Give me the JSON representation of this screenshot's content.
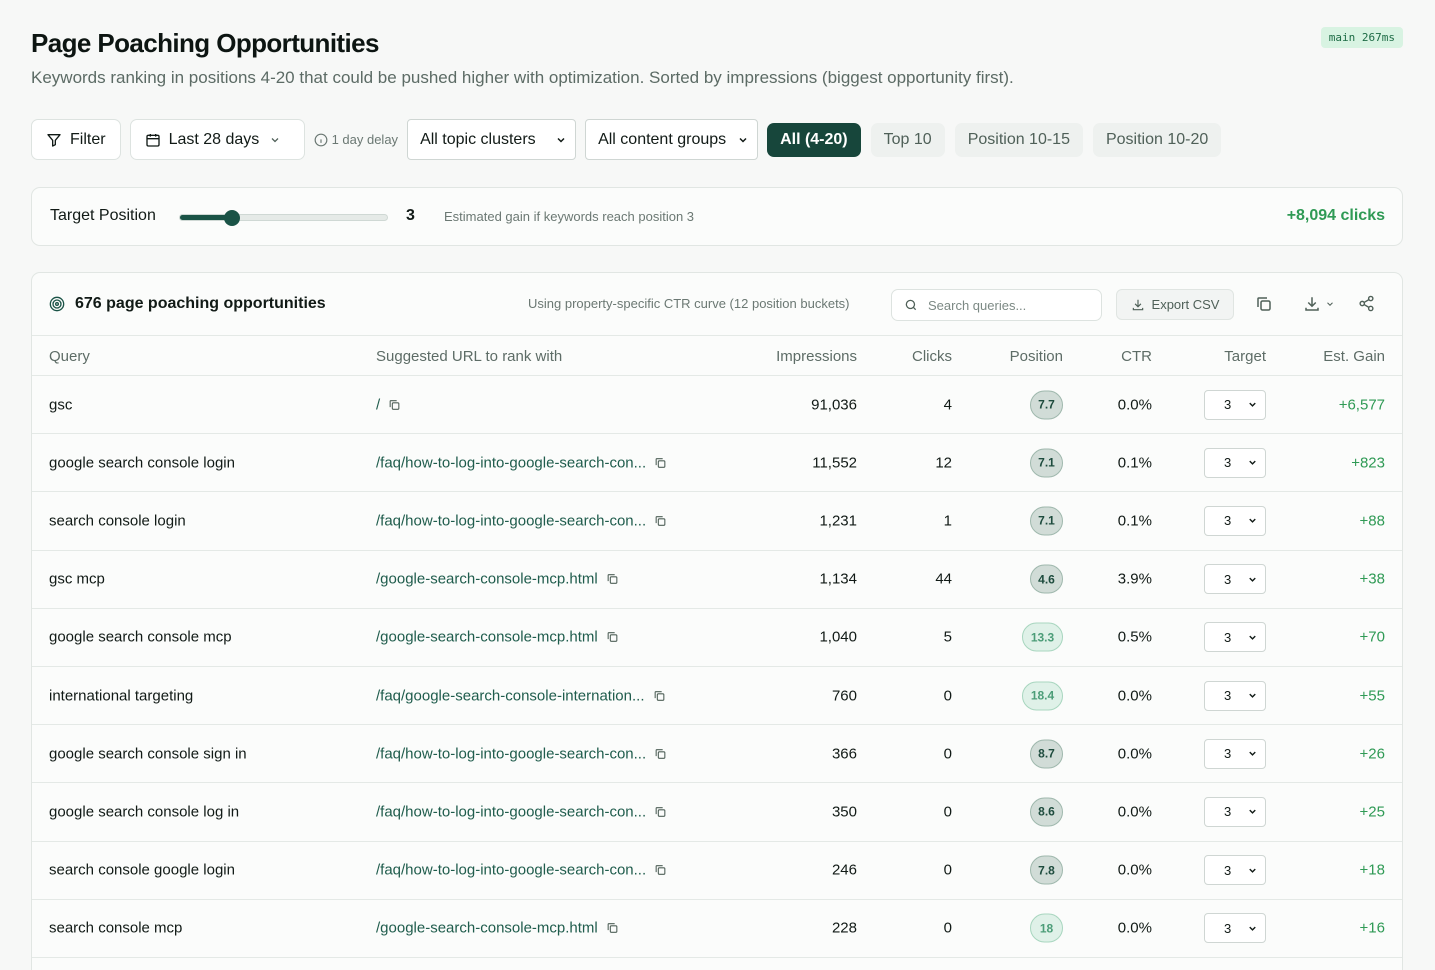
{
  "env_badge": "main 267ms",
  "title": "Page Poaching Opportunities",
  "subtitle": "Keywords ranking in positions 4-20 that could be pushed higher with optimization. Sorted by impressions (biggest opportunity first).",
  "toolbar": {
    "filter_label": "Filter",
    "date_range": "Last 28 days",
    "delay_note": "1 day delay",
    "topic_select": "All topic clusters",
    "content_select": "All content groups",
    "segments": [
      "All (4-20)",
      "Top 10",
      "Position 10-15",
      "Position 10-20"
    ],
    "active_segment": "All (4-20)"
  },
  "target": {
    "label": "Target Position",
    "value": "3",
    "slider_fraction": 0.25,
    "note": "Estimated gain if keywords reach position 3",
    "gain": "+8,094 clicks"
  },
  "table": {
    "title": "676 page poaching opportunities",
    "curve_note": "Using property-specific CTR curve (12 position buckets)",
    "search_placeholder": "Search queries...",
    "export_label": "Export CSV",
    "columns": {
      "query": "Query",
      "url": "Suggested URL to rank with",
      "impressions": "Impressions",
      "clicks": "Clicks",
      "position": "Position",
      "ctr": "CTR",
      "target": "Target",
      "gain": "Est. Gain"
    },
    "rows": [
      {
        "query": "gsc",
        "url": "/",
        "impressions": "91,036",
        "clicks": "4",
        "position": "7.7",
        "ctr": "0.0%",
        "target": "3",
        "gain": "+6,577"
      },
      {
        "query": "google search console login",
        "url": "/faq/how-to-log-into-google-search-con...",
        "impressions": "11,552",
        "clicks": "12",
        "position": "7.1",
        "ctr": "0.1%",
        "target": "3",
        "gain": "+823"
      },
      {
        "query": "search console login",
        "url": "/faq/how-to-log-into-google-search-con...",
        "impressions": "1,231",
        "clicks": "1",
        "position": "7.1",
        "ctr": "0.1%",
        "target": "3",
        "gain": "+88"
      },
      {
        "query": "gsc mcp",
        "url": "/google-search-console-mcp.html",
        "impressions": "1,134",
        "clicks": "44",
        "position": "4.6",
        "ctr": "3.9%",
        "target": "3",
        "gain": "+38"
      },
      {
        "query": "google search console mcp",
        "url": "/google-search-console-mcp.html",
        "impressions": "1,040",
        "clicks": "5",
        "position": "13.3",
        "ctr": "0.5%",
        "target": "3",
        "gain": "+70"
      },
      {
        "query": "international targeting",
        "url": "/faq/google-search-console-internation...",
        "impressions": "760",
        "clicks": "0",
        "position": "18.4",
        "ctr": "0.0%",
        "target": "3",
        "gain": "+55"
      },
      {
        "query": "google search console sign in",
        "url": "/faq/how-to-log-into-google-search-con...",
        "impressions": "366",
        "clicks": "0",
        "position": "8.7",
        "ctr": "0.0%",
        "target": "3",
        "gain": "+26"
      },
      {
        "query": "google search console log in",
        "url": "/faq/how-to-log-into-google-search-con...",
        "impressions": "350",
        "clicks": "0",
        "position": "8.6",
        "ctr": "0.0%",
        "target": "3",
        "gain": "+25"
      },
      {
        "query": "search console google login",
        "url": "/faq/how-to-log-into-google-search-con...",
        "impressions": "246",
        "clicks": "0",
        "position": "7.8",
        "ctr": "0.0%",
        "target": "3",
        "gain": "+18"
      },
      {
        "query": "search console mcp",
        "url": "/google-search-console-mcp.html",
        "impressions": "228",
        "clicks": "0",
        "position": "18",
        "ctr": "0.0%",
        "target": "3",
        "gain": "+16"
      }
    ]
  }
}
